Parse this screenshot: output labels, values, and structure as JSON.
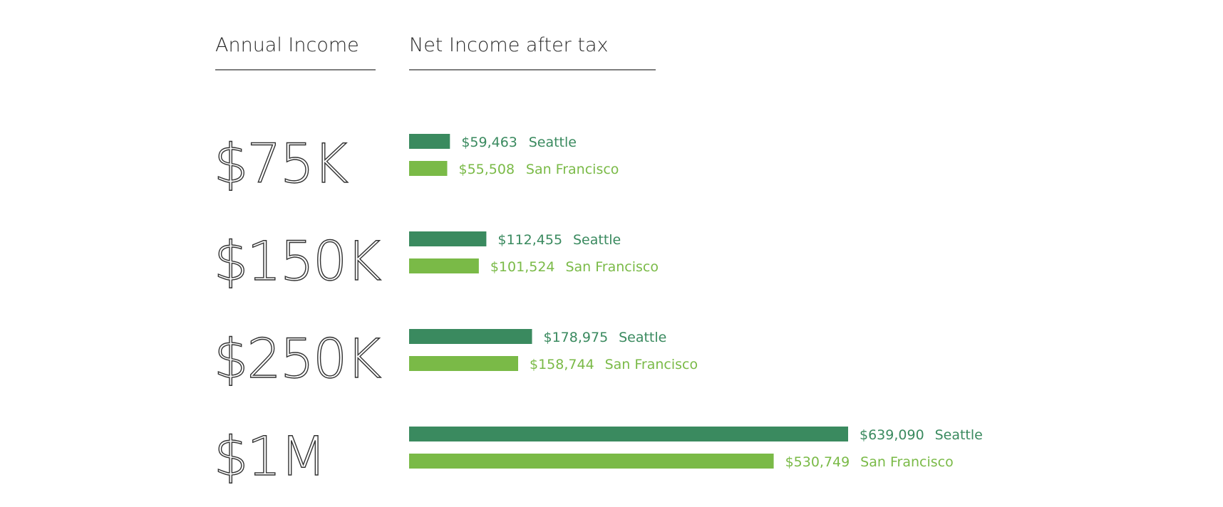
{
  "chart_data": {
    "type": "bar",
    "orientation": "horizontal",
    "headers": {
      "categories": "Annual Income",
      "values": "Net Income after tax"
    },
    "categories": [
      "$75K",
      "$150K",
      "$250K",
      "$1M"
    ],
    "series": [
      {
        "name": "Seattle",
        "color": "#3a8a5f",
        "values": [
          59463,
          112455,
          178975,
          639090
        ],
        "labels": [
          "$59,463",
          "$112,455",
          "$178,975",
          "$639,090"
        ]
      },
      {
        "name": "San Francisco",
        "color": "#7aba47",
        "values": [
          55508,
          101524,
          158744,
          530749
        ],
        "labels": [
          "$55,508",
          "$101,524",
          "$158,744",
          "$530,749"
        ]
      }
    ]
  }
}
